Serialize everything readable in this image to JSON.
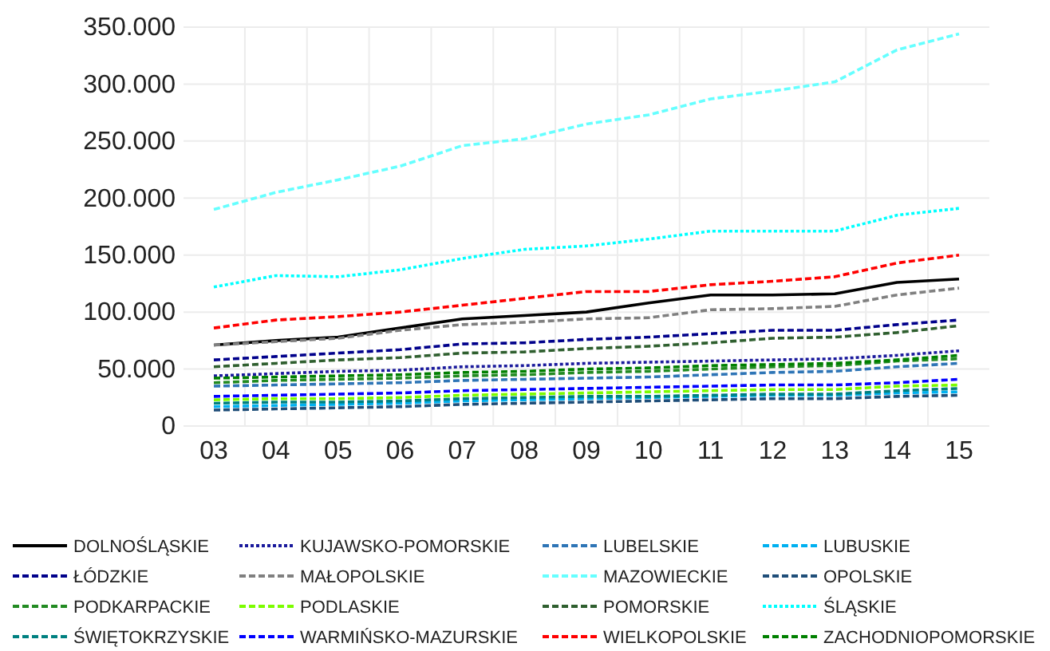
{
  "chart_data": {
    "type": "line",
    "categories": [
      "03",
      "04",
      "05",
      "06",
      "07",
      "08",
      "09",
      "10",
      "11",
      "12",
      "13",
      "14",
      "15"
    ],
    "ylim": [
      0,
      350000
    ],
    "yticks": [
      {
        "value": 0,
        "label": "0"
      },
      {
        "value": 50000,
        "label": "50.000"
      },
      {
        "value": 100000,
        "label": "100.000"
      },
      {
        "value": 150000,
        "label": "150.000"
      },
      {
        "value": 200000,
        "label": "200.000"
      },
      {
        "value": 250000,
        "label": "250.000"
      },
      {
        "value": 300000,
        "label": "300.000"
      },
      {
        "value": 350000,
        "label": "350.000"
      }
    ],
    "grid": true,
    "legend": "bottom",
    "marker": "none",
    "series": [
      {
        "name": "DOLNOŚLĄSKIE",
        "color": "#000000",
        "line_style": "solid",
        "values": [
          71000,
          75000,
          78000,
          86000,
          94000,
          97000,
          100000,
          108000,
          115000,
          115000,
          116000,
          126000,
          129000
        ]
      },
      {
        "name": "KUJAWSKO-POMORSKIE",
        "color": "#1a1a9c",
        "line_style": "dotted",
        "values": [
          44000,
          46000,
          48000,
          49000,
          52000,
          53000,
          55000,
          56000,
          57000,
          58000,
          59000,
          62000,
          66000
        ]
      },
      {
        "name": "LUBELSKIE",
        "color": "#2e75b6",
        "line_style": "dashed",
        "values": [
          35000,
          36000,
          37000,
          38000,
          40000,
          41000,
          42000,
          43000,
          45000,
          47000,
          48000,
          52000,
          55000
        ]
      },
      {
        "name": "LUBUSKIE",
        "color": "#00b0f0",
        "line_style": "dashed",
        "values": [
          17000,
          18000,
          19000,
          20000,
          22000,
          23000,
          24000,
          25000,
          26000,
          27000,
          27000,
          29000,
          30000
        ]
      },
      {
        "name": "ŁÓDZKIE",
        "color": "#00008b",
        "line_style": "dashed",
        "values": [
          58000,
          61000,
          64000,
          67000,
          72000,
          73000,
          76000,
          78000,
          81000,
          84000,
          84000,
          89000,
          93000
        ]
      },
      {
        "name": "MAŁOPOLSKIE",
        "color": "#808080",
        "line_style": "dashed",
        "values": [
          71000,
          74000,
          77000,
          84000,
          89000,
          91000,
          94000,
          95000,
          102000,
          103000,
          105000,
          115000,
          121000
        ]
      },
      {
        "name": "MAZOWIECKIE",
        "color": "#66ffff",
        "line_style": "dashed",
        "values": [
          190000,
          205000,
          216000,
          228000,
          246000,
          252000,
          265000,
          273000,
          287000,
          294000,
          302000,
          330000,
          344000
        ]
      },
      {
        "name": "OPOLSKIE",
        "color": "#1f4e79",
        "line_style": "dashed",
        "values": [
          14000,
          15000,
          16000,
          17000,
          19000,
          20000,
          21000,
          22000,
          23000,
          24000,
          24000,
          26000,
          27000
        ]
      },
      {
        "name": "PODKARPACKIE",
        "color": "#228b22",
        "line_style": "dashed",
        "values": [
          38000,
          40000,
          41000,
          42000,
          44000,
          45000,
          47000,
          48000,
          50000,
          52000,
          53000,
          57000,
          59000
        ]
      },
      {
        "name": "PODLASKIE",
        "color": "#7cfc00",
        "line_style": "dashed",
        "values": [
          23000,
          24000,
          24000,
          25000,
          27000,
          28000,
          29000,
          30000,
          31000,
          32000,
          32000,
          35000,
          36000
        ]
      },
      {
        "name": "POMORSKIE",
        "color": "#2f5f2f",
        "line_style": "dashed",
        "values": [
          52000,
          55000,
          58000,
          60000,
          64000,
          65000,
          68000,
          70000,
          73000,
          77000,
          78000,
          82000,
          88000
        ]
      },
      {
        "name": "ŚLĄSKIE",
        "color": "#00ffff",
        "line_style": "dotted",
        "values": [
          122000,
          132000,
          131000,
          137000,
          147000,
          155000,
          158000,
          164000,
          171000,
          171000,
          171000,
          185000,
          191000
        ]
      },
      {
        "name": "ŚWIĘTOKRZYSKIE",
        "color": "#008080",
        "line_style": "dashed",
        "values": [
          20000,
          21000,
          21000,
          22000,
          24000,
          25000,
          26000,
          26000,
          27000,
          28000,
          28000,
          31000,
          33000
        ]
      },
      {
        "name": "WARMIŃSKO-MAZURSKIE",
        "color": "#0000ff",
        "line_style": "dashed",
        "values": [
          26000,
          27000,
          28000,
          29000,
          31000,
          32000,
          33000,
          34000,
          35000,
          36000,
          36000,
          38000,
          41000
        ]
      },
      {
        "name": "WIELKOPOLSKIE",
        "color": "#ff0000",
        "line_style": "dashed",
        "values": [
          86000,
          93000,
          96000,
          100000,
          106000,
          112000,
          118000,
          118000,
          124000,
          127000,
          131000,
          143000,
          150000
        ]
      },
      {
        "name": "ZACHODNIOPOMORSKIE",
        "color": "#008000",
        "line_style": "dashed",
        "values": [
          42000,
          43000,
          44000,
          45000,
          47000,
          48000,
          50000,
          51000,
          53000,
          54000,
          55000,
          58000,
          62000
        ]
      }
    ]
  }
}
